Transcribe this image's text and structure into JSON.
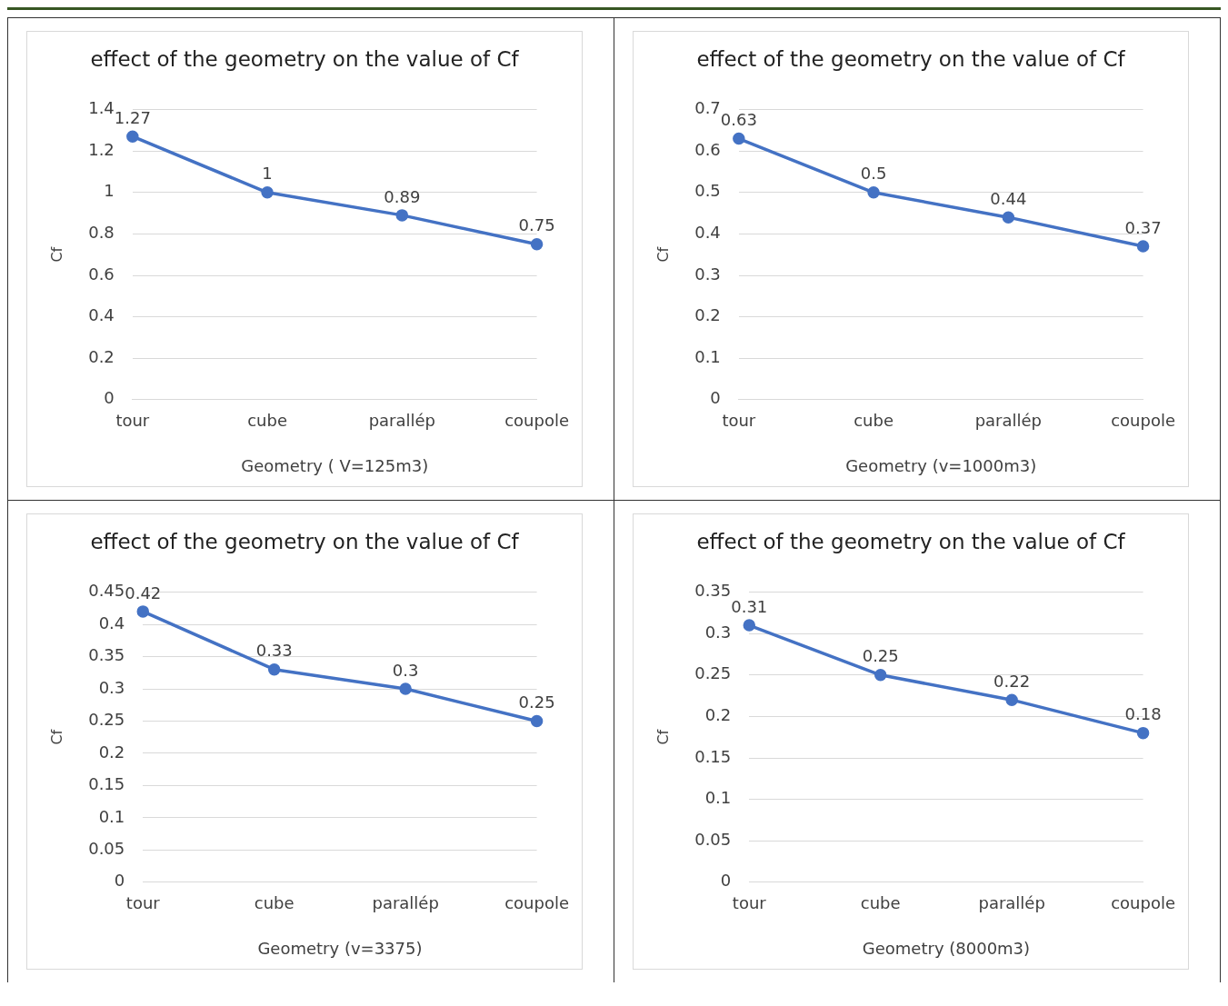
{
  "chart_data": [
    {
      "type": "line",
      "title": "effect of the geometry on the value of Cf",
      "xlabel": "Geometry ( V=125m3)",
      "ylabel": "Cf",
      "categories": [
        "tour",
        "cube",
        "parallép",
        "coupole"
      ],
      "series": [
        {
          "color": "#4472c4",
          "values": [
            1.27,
            1,
            0.89,
            0.75
          ]
        }
      ],
      "ylim": [
        0,
        1.4
      ],
      "yticks": [
        0,
        0.2,
        0.4,
        0.6,
        0.8,
        1,
        1.2,
        1.4
      ],
      "grid": "y",
      "marker": "circle",
      "data_labels": true
    },
    {
      "type": "line",
      "title": "effect of the geometry on the value of Cf",
      "xlabel": "Geometry (v=1000m3)",
      "ylabel": "Cf",
      "categories": [
        "tour",
        "cube",
        "parallép",
        "coupole"
      ],
      "series": [
        {
          "color": "#4472c4",
          "values": [
            0.63,
            0.5,
            0.44,
            0.37
          ]
        }
      ],
      "ylim": [
        0,
        0.7
      ],
      "yticks": [
        0,
        0.1,
        0.2,
        0.3,
        0.4,
        0.5,
        0.6,
        0.7
      ],
      "grid": "y",
      "marker": "circle",
      "data_labels": true
    },
    {
      "type": "line",
      "title": "effect of the geometry on the value of Cf",
      "xlabel": "Geometry (v=3375)",
      "ylabel": "Cf",
      "categories": [
        "tour",
        "cube",
        "parallép",
        "coupole"
      ],
      "series": [
        {
          "color": "#4472c4",
          "values": [
            0.42,
            0.33,
            0.3,
            0.25
          ]
        }
      ],
      "ylim": [
        0,
        0.45
      ],
      "yticks": [
        0,
        0.05,
        0.1,
        0.15,
        0.2,
        0.25,
        0.3,
        0.35,
        0.4,
        0.45
      ],
      "grid": "y",
      "marker": "circle",
      "data_labels": true
    },
    {
      "type": "line",
      "title": "effect of the geometry on the value of Cf",
      "xlabel": "Geometry (8000m3)",
      "ylabel": "Cf",
      "categories": [
        "tour",
        "cube",
        "parallép",
        "coupole"
      ],
      "series": [
        {
          "color": "#4472c4",
          "values": [
            0.31,
            0.25,
            0.22,
            0.18
          ]
        }
      ],
      "ylim": [
        0,
        0.35
      ],
      "yticks": [
        0,
        0.05,
        0.1,
        0.15,
        0.2,
        0.25,
        0.3,
        0.35
      ],
      "grid": "y",
      "marker": "circle",
      "data_labels": true
    }
  ]
}
